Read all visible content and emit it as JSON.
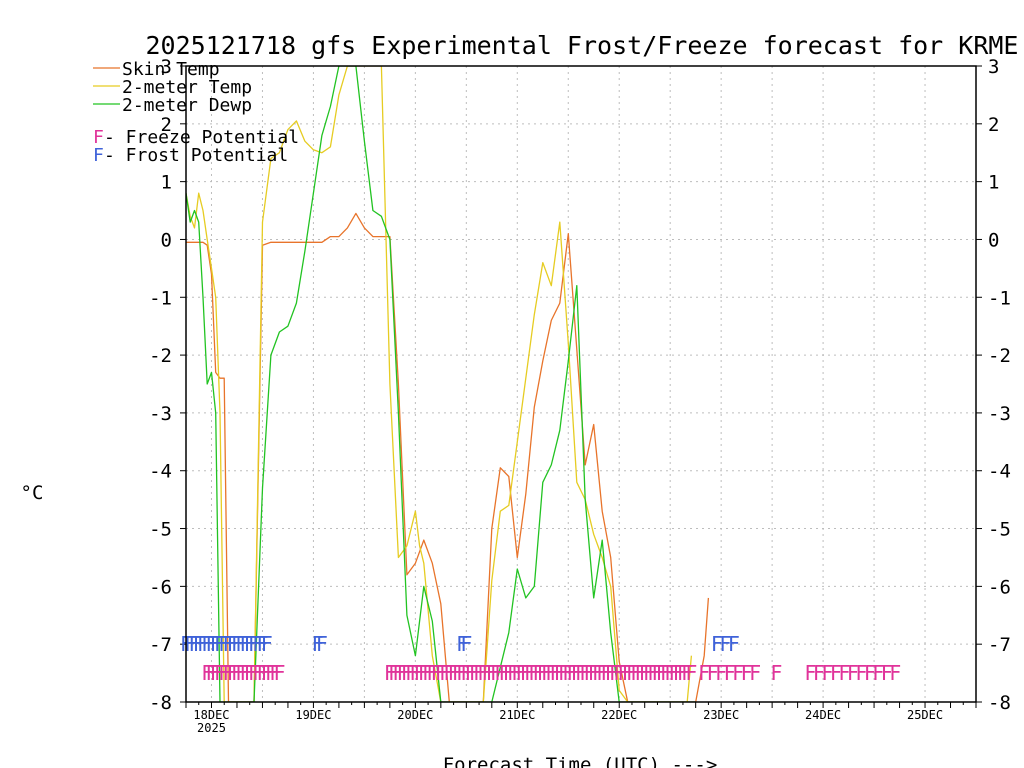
{
  "chart_data": {
    "type": "line",
    "title": "2025121718 gfs Experimental Frost/Freeze forecast for KRME",
    "xlabel": "Forecast Time (UTC) --->",
    "ylabel": "°C",
    "ylim": [
      -8,
      3
    ],
    "xlim_hours": [
      0,
      186
    ],
    "yticks": [
      "3",
      "2",
      "1",
      "0",
      "-1",
      "-2",
      "-3",
      "-4",
      "-5",
      "-6",
      "-7",
      "-8"
    ],
    "ytick_values": [
      3,
      2,
      1,
      0,
      -1,
      -2,
      -3,
      -4,
      -5,
      -6,
      -7,
      -8
    ],
    "x_ticks": [
      {
        "label": "18DEC",
        "hour": 6
      },
      {
        "label": "19DEC",
        "hour": 30
      },
      {
        "label": "20DEC",
        "hour": 54
      },
      {
        "label": "21DEC",
        "hour": 78
      },
      {
        "label": "22DEC",
        "hour": 102
      },
      {
        "label": "23DEC",
        "hour": 126
      },
      {
        "label": "24DEC",
        "hour": 150
      },
      {
        "label": "25DEC",
        "hour": 174
      }
    ],
    "x_tick_year": "2025",
    "legend": {
      "placement": "top-left",
      "skin": "Skin Temp",
      "temp2m": "2-meter Temp",
      "dewp2m": "2-meter Dewp",
      "freeze_key": "F",
      "freeze_label": " - Freeze Potential",
      "frost_key": "F",
      "frost_label": " - Frost Potential"
    },
    "colors": {
      "skin": "#e8742b",
      "temp2m": "#e6cc22",
      "dewp2m": "#22c322",
      "freeze": "#e0339a",
      "frost": "#3f62d9",
      "grid": "#bdbdbd"
    },
    "series": [
      {
        "name": "Skin Temp",
        "key": "skin",
        "x": [
          0,
          1,
          2,
          3,
          4,
          5,
          6,
          7,
          8,
          9,
          10,
          12,
          14,
          16,
          18,
          20,
          22,
          24,
          26,
          28,
          30,
          32,
          34,
          36,
          38,
          40,
          42,
          44,
          46,
          48,
          50,
          52,
          54,
          56,
          58,
          60,
          62,
          64,
          66,
          68,
          70,
          72,
          74,
          76,
          78,
          80,
          82,
          84,
          86,
          88,
          90,
          92,
          94,
          96,
          98,
          100,
          102,
          104,
          106,
          108,
          110,
          112,
          114,
          116,
          118,
          120,
          122,
          123
        ],
        "y": [
          -0.05,
          -0.05,
          -0.05,
          -0.05,
          -0.05,
          -0.1,
          -0.6,
          -2.3,
          -2.4,
          -2.4,
          -8,
          -8,
          -8,
          -8,
          -0.1,
          -0.05,
          -0.05,
          -0.05,
          -0.05,
          -0.05,
          -0.05,
          -0.05,
          0.05,
          0.05,
          0.2,
          0.45,
          0.2,
          0.05,
          0.05,
          0.05,
          -2.5,
          -5.8,
          -5.6,
          -5.2,
          -5.6,
          -6.3,
          -8,
          -8,
          -8,
          -8,
          -8,
          -5,
          -3.95,
          -4.1,
          -5.5,
          -4.4,
          -2.9,
          -2.1,
          -1.4,
          -1.1,
          0.1,
          -1.9,
          -3.9,
          -3.2,
          -4.7,
          -5.5,
          -7.3,
          -8,
          -8,
          -8,
          -8,
          -8,
          -8,
          -8,
          -8,
          -8,
          -7.2,
          -6.2
        ]
      },
      {
        "name": "2-meter Temp",
        "key": "temp2m",
        "x": [
          0,
          1,
          2,
          3,
          4,
          5,
          6,
          7,
          8,
          8.5,
          9,
          10,
          12,
          14,
          16,
          18,
          20,
          22,
          24,
          26,
          28,
          30,
          32,
          34,
          36,
          38,
          40,
          42,
          44,
          46,
          48,
          50,
          52,
          54,
          55,
          56,
          58,
          60,
          62,
          64,
          66,
          68,
          70,
          72,
          74,
          76,
          78,
          80,
          82,
          84,
          86,
          88,
          90,
          92,
          94,
          96,
          98,
          100,
          102,
          104,
          106,
          108,
          110,
          112,
          114,
          116,
          118,
          119
        ],
        "y": [
          0.8,
          0.4,
          0.2,
          0.8,
          0.5,
          0,
          -0.5,
          -1,
          -3,
          -5.5,
          -8,
          -8,
          -8,
          -8,
          -8,
          0.3,
          1.4,
          1.5,
          1.9,
          2.05,
          1.7,
          1.55,
          1.5,
          1.6,
          2.5,
          3,
          3,
          3,
          3,
          3,
          -2.5,
          -5.5,
          -5.3,
          -4.7,
          -5.3,
          -5.6,
          -7.2,
          -8,
          -8,
          -8,
          -8,
          -8,
          -8,
          -5.9,
          -4.7,
          -4.6,
          -3.5,
          -2.4,
          -1.3,
          -0.4,
          -0.8,
          0.3,
          -1.8,
          -4.2,
          -4.5,
          -5.1,
          -5.5,
          -6,
          -7.8,
          -8,
          -8,
          -8,
          -8,
          -8,
          -8,
          -8,
          -8,
          -7.2
        ]
      },
      {
        "name": "2-meter Dewp",
        "key": "dewp2m",
        "x": [
          0,
          1,
          2,
          3,
          4,
          5,
          6,
          7,
          8,
          9,
          10,
          12,
          14,
          16,
          18,
          20,
          22,
          24,
          26,
          28,
          30,
          32,
          34,
          36,
          38,
          40,
          42,
          44,
          46,
          48,
          50,
          52,
          54,
          56,
          58,
          60,
          62,
          64,
          66,
          68,
          70,
          72,
          74,
          76,
          78,
          80,
          82,
          84,
          86,
          88,
          90,
          92,
          94,
          96,
          98,
          100,
          102,
          104,
          106,
          108,
          110,
          112,
          114,
          116,
          118,
          120
        ],
        "y": [
          0.8,
          0.3,
          0.5,
          0.3,
          -1,
          -2.5,
          -2.3,
          -3,
          -8,
          -8,
          -8,
          -8,
          -8,
          -8,
          -4.3,
          -2,
          -1.6,
          -1.5,
          -1.1,
          -0.2,
          0.8,
          1.8,
          2.3,
          3,
          3,
          3,
          1.7,
          0.5,
          0.4,
          0,
          -3,
          -6.5,
          -7.2,
          -6,
          -6.6,
          -8,
          -8,
          -8,
          -8,
          -8,
          -8,
          -8,
          -7.4,
          -6.8,
          -5.7,
          -6.2,
          -6,
          -4.2,
          -3.9,
          -3.3,
          -2.1,
          -0.8,
          -4.5,
          -6.2,
          -5.2,
          -6.8,
          -8,
          -8,
          -8,
          -8,
          -8,
          -8,
          -8,
          -8,
          -8,
          -8
        ]
      }
    ],
    "frost_marks_hours": [
      0,
      1,
      2,
      3,
      4,
      5,
      6,
      7,
      8,
      9,
      10,
      11,
      12,
      13,
      14,
      15,
      16,
      17,
      18,
      19,
      31,
      32,
      65,
      66,
      125,
      127,
      129
    ],
    "freeze_marks_hours": [
      5,
      6,
      7,
      8,
      9,
      10,
      11,
      12,
      13,
      14,
      15,
      16,
      17,
      18,
      19,
      20,
      21,
      22,
      48,
      49,
      50,
      51,
      52,
      53,
      54,
      55,
      56,
      57,
      58,
      59,
      60,
      61,
      62,
      63,
      64,
      65,
      66,
      67,
      68,
      69,
      70,
      71,
      72,
      73,
      74,
      75,
      76,
      77,
      78,
      79,
      80,
      81,
      82,
      83,
      84,
      85,
      86,
      87,
      88,
      89,
      90,
      91,
      92,
      93,
      94,
      95,
      96,
      97,
      98,
      99,
      100,
      101,
      102,
      103,
      104,
      105,
      106,
      107,
      108,
      109,
      110,
      111,
      112,
      113,
      114,
      115,
      116,
      117,
      118,
      119,
      122,
      124,
      126,
      128,
      130,
      132,
      134,
      139,
      147,
      149,
      151,
      153,
      155,
      157,
      159,
      161,
      163,
      165,
      167
    ]
  }
}
